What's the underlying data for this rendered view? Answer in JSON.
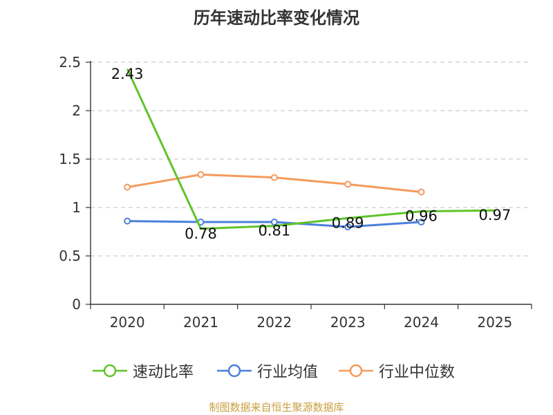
{
  "chart_data": {
    "type": "line",
    "title": "历年速动比率变化情况",
    "categories": [
      "2020",
      "2021",
      "2022",
      "2023",
      "2024",
      "2025"
    ],
    "ylim": [
      0,
      2.5
    ],
    "yticks": [
      0,
      0.5,
      1,
      1.5,
      2,
      2.5
    ],
    "ytick_labels": [
      "0",
      "0.5",
      "1",
      "1.5",
      "2",
      "2.5"
    ],
    "grid": true,
    "legend_position": "bottom-center",
    "series": [
      {
        "name": "速动比率",
        "color": "#5ec427",
        "values": [
          2.43,
          0.78,
          0.81,
          0.89,
          0.96,
          0.97
        ],
        "data_labels": [
          "2.43",
          "0.78",
          "0.81",
          "0.89",
          "0.96",
          "0.97"
        ],
        "show_labels": true,
        "show_markers": false
      },
      {
        "name": "行业均值",
        "color": "#4a7fdb",
        "values": [
          0.86,
          0.85,
          0.85,
          0.8,
          0.85,
          null
        ],
        "show_labels": false,
        "show_markers": true
      },
      {
        "name": "行业中位数",
        "color": "#f59a5c",
        "values": [
          1.21,
          1.34,
          1.31,
          1.24,
          1.16,
          null
        ],
        "show_labels": false,
        "show_markers": true
      }
    ]
  },
  "source_note": "制图数据来自恒生聚源数据库"
}
